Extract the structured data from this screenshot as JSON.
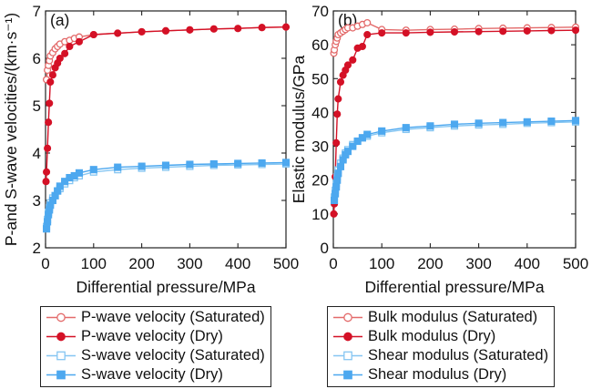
{
  "colors": {
    "dark_red": "#d41126",
    "light_red": "#e36a6a",
    "blue": "#4da8ef",
    "light_blue": "#86c6f2"
  },
  "chart_data": [
    {
      "type": "line",
      "panel_label": "(a)",
      "xlabel": "Differential pressure/MPa",
      "ylabel": "P-and S-wave velocities/(km·s⁻¹)",
      "xlim": [
        0,
        500
      ],
      "ylim": [
        2,
        7
      ],
      "xticks": [
        0,
        100,
        200,
        300,
        400,
        500
      ],
      "yticks": [
        2,
        3,
        4,
        5,
        6,
        7
      ],
      "grid": false,
      "legend_position": "below",
      "series": [
        {
          "name": "P-wave velocity (Saturated)",
          "color": "#e36a6a",
          "marker": "circle-open",
          "x": [
            2,
            4,
            6,
            8,
            10,
            15,
            20,
            25,
            30,
            40,
            50,
            60,
            70,
            100,
            150,
            200,
            250,
            300,
            350,
            400,
            450,
            500
          ],
          "y": [
            5.55,
            5.75,
            5.85,
            5.95,
            6.05,
            6.12,
            6.2,
            6.25,
            6.3,
            6.35,
            6.38,
            6.42,
            6.45,
            6.5,
            6.53,
            6.56,
            6.58,
            6.6,
            6.62,
            6.63,
            6.65,
            6.66
          ]
        },
        {
          "name": "P-wave velocity (Dry)",
          "color": "#d41126",
          "marker": "circle-filled",
          "x": [
            1,
            2,
            4,
            6,
            8,
            10,
            15,
            20,
            25,
            30,
            40,
            50,
            70,
            100,
            150,
            200,
            250,
            300,
            350,
            400,
            450,
            500
          ],
          "y": [
            3.4,
            3.6,
            4.1,
            4.65,
            5.05,
            5.5,
            5.65,
            5.8,
            5.9,
            6.0,
            6.1,
            6.25,
            6.35,
            6.5,
            6.53,
            6.56,
            6.58,
            6.6,
            6.62,
            6.63,
            6.65,
            6.66
          ]
        },
        {
          "name": "S-wave velocity (Saturated)",
          "color": "#86c6f2",
          "marker": "square-open",
          "x": [
            2,
            4,
            6,
            8,
            10,
            15,
            20,
            25,
            30,
            40,
            50,
            60,
            70,
            100,
            150,
            200,
            250,
            300,
            350,
            400,
            450,
            500
          ],
          "y": [
            2.45,
            2.6,
            2.75,
            2.85,
            2.95,
            3.05,
            3.1,
            3.2,
            3.25,
            3.35,
            3.42,
            3.48,
            3.52,
            3.6,
            3.65,
            3.68,
            3.7,
            3.72,
            3.74,
            3.75,
            3.76,
            3.77
          ]
        },
        {
          "name": "S-wave velocity (Dry)",
          "color": "#4da8ef",
          "marker": "square-filled",
          "x": [
            2,
            4,
            6,
            8,
            10,
            15,
            20,
            25,
            30,
            40,
            50,
            60,
            70,
            100,
            150,
            200,
            250,
            300,
            350,
            400,
            450,
            500
          ],
          "y": [
            2.4,
            2.55,
            2.7,
            2.8,
            2.9,
            3.0,
            3.1,
            3.2,
            3.3,
            3.4,
            3.48,
            3.52,
            3.58,
            3.65,
            3.7,
            3.72,
            3.74,
            3.76,
            3.77,
            3.78,
            3.79,
            3.8
          ]
        }
      ]
    },
    {
      "type": "line",
      "panel_label": "(b)",
      "xlabel": "Differential pressure/MPa",
      "ylabel": "Elastic modulus/GPa",
      "xlim": [
        0,
        500
      ],
      "ylim": [
        0,
        70
      ],
      "xticks": [
        0,
        100,
        200,
        300,
        400,
        500
      ],
      "yticks": [
        0,
        10,
        20,
        30,
        40,
        50,
        60,
        70
      ],
      "grid": false,
      "legend_position": "below",
      "series": [
        {
          "name": "Bulk modulus (Saturated)",
          "color": "#e36a6a",
          "marker": "circle-open",
          "x": [
            1,
            2,
            4,
            6,
            8,
            10,
            15,
            20,
            25,
            30,
            40,
            50,
            60,
            70,
            100,
            150,
            200,
            250,
            300,
            350,
            400,
            450,
            500
          ],
          "y": [
            57.5,
            58.5,
            60,
            61,
            62,
            63,
            63.5,
            64,
            64.5,
            65,
            65,
            65.5,
            66,
            66.5,
            64.5,
            64.3,
            64.5,
            64.6,
            64.8,
            64.9,
            65,
            65.1,
            65.2
          ]
        },
        {
          "name": "Bulk modulus (Dry)",
          "color": "#d41126",
          "marker": "circle-filled",
          "x": [
            1,
            2,
            4,
            6,
            8,
            10,
            15,
            20,
            25,
            30,
            40,
            50,
            60,
            70,
            100,
            150,
            200,
            250,
            300,
            350,
            400,
            450,
            500
          ],
          "y": [
            10,
            13,
            21,
            31,
            39.5,
            44,
            49,
            51,
            52.5,
            54,
            55.5,
            59,
            59.5,
            63,
            63.5,
            63.5,
            63.7,
            63.8,
            63.9,
            64,
            64.1,
            64.2,
            64.3
          ]
        },
        {
          "name": "Shear modulus (Saturated)",
          "color": "#86c6f2",
          "marker": "square-open",
          "x": [
            2,
            4,
            6,
            8,
            10,
            15,
            20,
            25,
            30,
            40,
            50,
            60,
            70,
            100,
            150,
            200,
            250,
            300,
            350,
            400,
            450,
            500
          ],
          "y": [
            15,
            17,
            19,
            21,
            23,
            25,
            26.5,
            28,
            29,
            30.5,
            31.5,
            32.5,
            33,
            34,
            35,
            35.5,
            36,
            36.3,
            36.5,
            36.8,
            37,
            37.2
          ]
        },
        {
          "name": "Shear modulus (Dry)",
          "color": "#4da8ef",
          "marker": "square-filled",
          "x": [
            2,
            4,
            6,
            8,
            10,
            15,
            20,
            25,
            30,
            40,
            50,
            60,
            70,
            100,
            150,
            200,
            250,
            300,
            350,
            400,
            450,
            500
          ],
          "y": [
            14,
            16,
            18,
            20,
            22,
            24,
            26,
            27.5,
            28.5,
            30,
            31.5,
            32.5,
            33.5,
            34.5,
            35.5,
            36,
            36.5,
            36.8,
            37,
            37.2,
            37.4,
            37.6
          ]
        }
      ]
    }
  ]
}
